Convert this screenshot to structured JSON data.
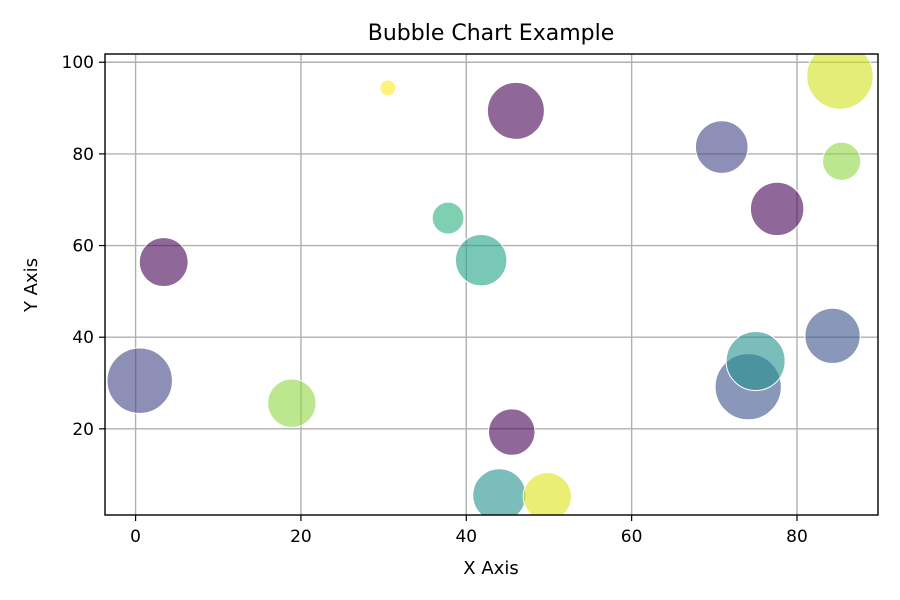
{
  "chart_data": {
    "type": "scatter",
    "variant": "bubble",
    "title": "Bubble Chart Example",
    "xlabel": "X Axis",
    "ylabel": "Y Axis",
    "xlim": [
      -3.7,
      89.8
    ],
    "ylim": [
      1.2,
      101.8
    ],
    "x_ticks": [
      0,
      20,
      40,
      60,
      80
    ],
    "y_ticks": [
      20,
      40,
      60,
      80,
      100
    ],
    "grid": true,
    "legend": "none",
    "bubble_alpha": 0.6,
    "points": [
      {
        "x": 0.5,
        "y": 30.5,
        "size": 1900,
        "color": "#414487"
      },
      {
        "x": 3.4,
        "y": 56.4,
        "size": 1060,
        "color": "#440154"
      },
      {
        "x": 18.9,
        "y": 25.6,
        "size": 1040,
        "color": "#8fd744"
      },
      {
        "x": 30.5,
        "y": 94.4,
        "size": 110,
        "color": "#fde725"
      },
      {
        "x": 37.8,
        "y": 66.0,
        "size": 450,
        "color": "#2ab07f"
      },
      {
        "x": 41.8,
        "y": 56.8,
        "size": 1170,
        "color": "#1fa187"
      },
      {
        "x": 46.0,
        "y": 89.4,
        "size": 1440,
        "color": "#440154"
      },
      {
        "x": 45.5,
        "y": 19.3,
        "size": 960,
        "color": "#440154"
      },
      {
        "x": 44.0,
        "y": 5.5,
        "size": 1260,
        "color": "#21918c"
      },
      {
        "x": 49.8,
        "y": 5.2,
        "size": 1030,
        "color": "#dde318"
      },
      {
        "x": 70.9,
        "y": 81.5,
        "size": 1230,
        "color": "#414487"
      },
      {
        "x": 77.6,
        "y": 68.0,
        "size": 1270,
        "color": "#440154"
      },
      {
        "x": 85.4,
        "y": 78.4,
        "size": 650,
        "color": "#8fd744"
      },
      {
        "x": 85.2,
        "y": 97.0,
        "size": 1960,
        "color": "#d0e11c"
      },
      {
        "x": 74.1,
        "y": 29.2,
        "size": 1950,
        "color": "#3b528b"
      },
      {
        "x": 75.0,
        "y": 34.8,
        "size": 1550,
        "color": "#21918c"
      },
      {
        "x": 84.3,
        "y": 40.3,
        "size": 1350,
        "color": "#3b528b"
      }
    ]
  }
}
